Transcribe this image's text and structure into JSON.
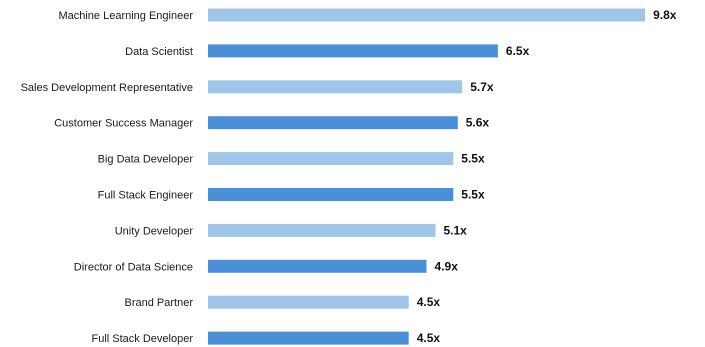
{
  "chart_data": {
    "type": "bar",
    "orientation": "horizontal",
    "categories": [
      "Machine Learning Engineer",
      "Data Scientist",
      "Sales Development Representative",
      "Customer Success Manager",
      "Big Data Developer",
      "Full Stack Engineer",
      "Unity Developer",
      "Director of Data Science",
      "Brand Partner",
      "Full Stack Developer"
    ],
    "values": [
      9.8,
      6.5,
      5.7,
      5.6,
      5.5,
      5.5,
      5.1,
      4.9,
      4.5,
      4.5
    ],
    "value_labels": [
      "9.8x",
      "6.5x",
      "5.7x",
      "5.6x",
      "5.5x",
      "5.5x",
      "5.1x",
      "4.9x",
      "4.5x",
      "4.5x"
    ],
    "title": "",
    "xlabel": "",
    "ylabel": "",
    "xlim": [
      0,
      10
    ],
    "grid": false,
    "legend": "none",
    "colors": {
      "light": "#9fc5e8",
      "dark": "#4a90d9",
      "pattern": [
        "light",
        "dark",
        "light",
        "dark",
        "light",
        "dark",
        "light",
        "dark",
        "light",
        "dark"
      ]
    }
  }
}
